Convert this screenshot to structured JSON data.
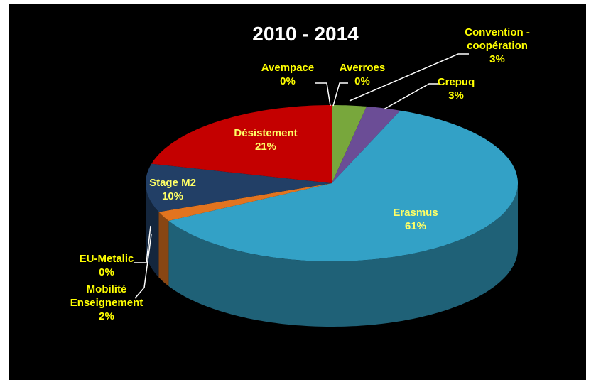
{
  "chart_data": {
    "type": "pie",
    "title": "2010 - 2014",
    "categories": [
      "Averroes",
      "Convention - coopération",
      "Crepuq",
      "Erasmus",
      "EU-Metalic",
      "Mobilité Enseignement",
      "Stage M2",
      "Désistement",
      "Avempace"
    ],
    "values": [
      0,
      3,
      3,
      61,
      0,
      2,
      10,
      21,
      0
    ],
    "value_labels": [
      "0%",
      "3%",
      "3%",
      "61%",
      "0%",
      "2%",
      "10%",
      "21%",
      "0%"
    ],
    "colors": [
      "#8fb24a",
      "#78a73c",
      "#6b4d96",
      "#33a1c6",
      "#9a5a22",
      "#e2741f",
      "#223f66",
      "#c40000",
      "#808080"
    ]
  }
}
